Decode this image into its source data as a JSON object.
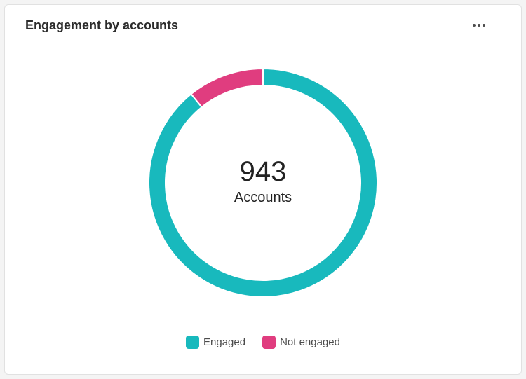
{
  "card": {
    "title": "Engagement by accounts",
    "menu_icon": "more-horizontal-icon"
  },
  "chart_data": {
    "type": "pie",
    "variant": "donut",
    "title": "Engagement by accounts",
    "center_value": "943",
    "center_label": "Accounts",
    "categories": [
      "Engaged",
      "Not engaged"
    ],
    "values": [
      841,
      102
    ],
    "colors": [
      "#18b9bd",
      "#e03d7f"
    ],
    "legend_position": "bottom"
  }
}
